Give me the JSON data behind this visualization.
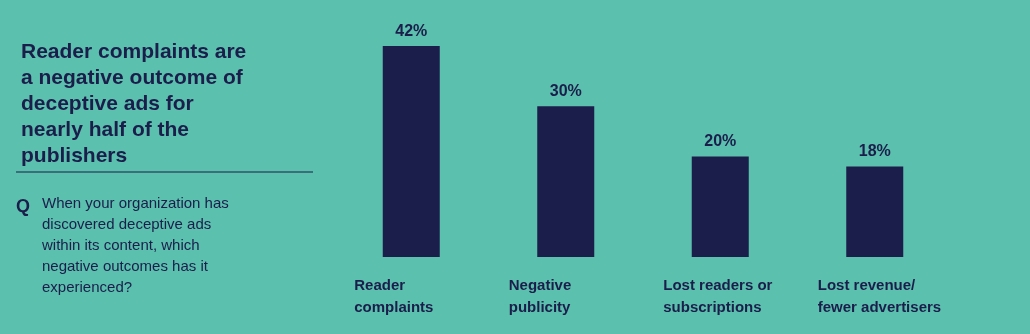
{
  "chart_data": {
    "type": "bar",
    "title": "Reader complaints are a negative outcome of deceptive ads for nearly half of the publishers",
    "subtitle": "When your organization has discovered deceptive ads within its content, which negative outcomes has it experienced?",
    "annotations": [
      "Q"
    ],
    "categories": [
      "Reader complaints",
      "Negative publicity",
      "Lost readers or subscriptions",
      "Lost revenue/ fewer advertisers"
    ],
    "values": [
      42,
      30,
      20,
      18
    ],
    "value_labels": [
      "42%",
      "30%",
      "20%",
      "18%"
    ],
    "color": "#1b1d4b",
    "grid": false
  }
}
